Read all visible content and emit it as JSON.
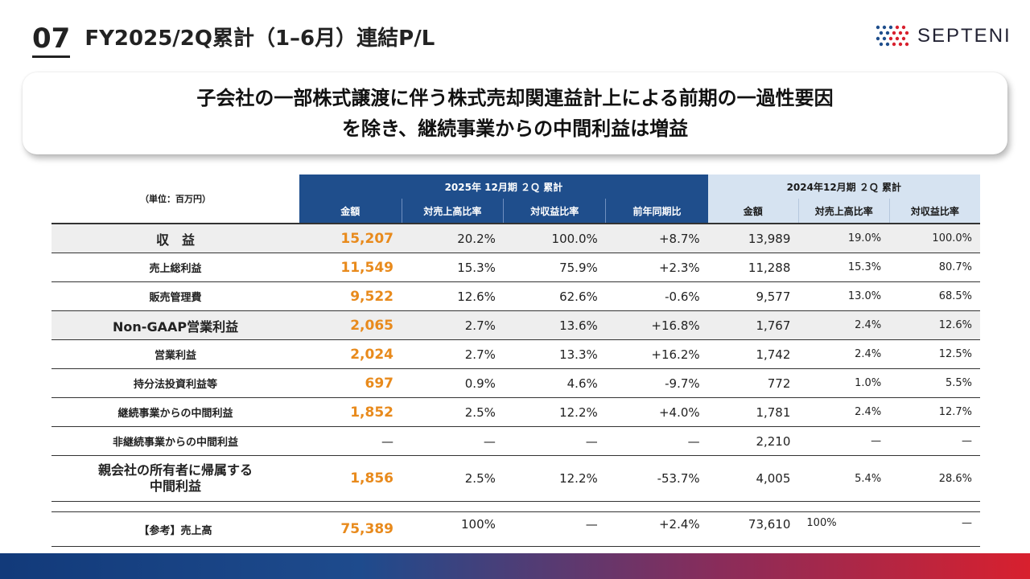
{
  "header": {
    "slide_number": "07",
    "title": "FY2025/2Q累計（1–6月）連結P/L"
  },
  "logo": {
    "text": "SEPTENI",
    "colors": [
      "#1f4e8c",
      "#d8202e"
    ]
  },
  "callout": {
    "line1": "子会社の一部株式譲渡に伴う株式売却関連益計上による前期の一過性要因",
    "line2": "を除き、継続事業からの中間利益は増益"
  },
  "table": {
    "unit_label": "（単位：百万円）",
    "group_current": "2025年 12月期 ２Ｑ 累計",
    "group_previous": "2024年12月期 ２Ｑ 累計",
    "headers_current": [
      "金額",
      "対売上高比率",
      "対収益比率",
      "前年同期比"
    ],
    "headers_previous": [
      "金額",
      "対売上高比率",
      "対収益比率"
    ],
    "rows": [
      {
        "label": "収　益",
        "amount": "15,207",
        "sales_ratio": "20.2%",
        "revenue_ratio": "100.0%",
        "yoy": "+8.7%",
        "prev_amount": "13,989",
        "prev_sales_ratio": "19.0%",
        "prev_revenue_ratio": "100.0%"
      },
      {
        "label": "売上総利益",
        "amount": "11,549",
        "sales_ratio": "15.3%",
        "revenue_ratio": "75.9%",
        "yoy": "+2.3%",
        "prev_amount": "11,288",
        "prev_sales_ratio": "15.3%",
        "prev_revenue_ratio": "80.7%"
      },
      {
        "label": "販売管理費",
        "amount": "9,522",
        "sales_ratio": "12.6%",
        "revenue_ratio": "62.6%",
        "yoy": "-0.6%",
        "prev_amount": "9,577",
        "prev_sales_ratio": "13.0%",
        "prev_revenue_ratio": "68.5%"
      },
      {
        "label": "Non-GAAP営業利益",
        "amount": "2,065",
        "sales_ratio": "2.7%",
        "revenue_ratio": "13.6%",
        "yoy": "+16.8%",
        "prev_amount": "1,767",
        "prev_sales_ratio": "2.4%",
        "prev_revenue_ratio": "12.6%"
      },
      {
        "label": "営業利益",
        "amount": "2,024",
        "sales_ratio": "2.7%",
        "revenue_ratio": "13.3%",
        "yoy": "+16.2%",
        "prev_amount": "1,742",
        "prev_sales_ratio": "2.4%",
        "prev_revenue_ratio": "12.5%"
      },
      {
        "label": "持分法投資利益等",
        "amount": "697",
        "sales_ratio": "0.9%",
        "revenue_ratio": "4.6%",
        "yoy": "-9.7%",
        "prev_amount": "772",
        "prev_sales_ratio": "1.0%",
        "prev_revenue_ratio": "5.5%"
      },
      {
        "label": "継続事業からの中間利益",
        "amount": "1,852",
        "sales_ratio": "2.5%",
        "revenue_ratio": "12.2%",
        "yoy": "+4.0%",
        "prev_amount": "1,781",
        "prev_sales_ratio": "2.4%",
        "prev_revenue_ratio": "12.7%"
      },
      {
        "label": "非継続事業からの中間利益",
        "amount": "—",
        "sales_ratio": "—",
        "revenue_ratio": "—",
        "yoy": "—",
        "prev_amount": "2,210",
        "prev_sales_ratio": "—",
        "prev_revenue_ratio": "—"
      },
      {
        "label_line1": "親会社の所有者に帰属する",
        "label_line2": "中間利益",
        "amount": "1,856",
        "sales_ratio": "2.5%",
        "revenue_ratio": "12.2%",
        "yoy": "-53.7%",
        "prev_amount": "4,005",
        "prev_sales_ratio": "5.4%",
        "prev_revenue_ratio": "28.6%"
      }
    ],
    "reference_row": {
      "label": "【参考】売上高",
      "amount": "75,389",
      "sales_ratio": "100%",
      "revenue_ratio": "—",
      "yoy": "+2.4%",
      "prev_amount": "73,610",
      "prev_sales_ratio": "100%",
      "prev_revenue_ratio": "—"
    }
  },
  "colors": {
    "header_blue": "#1f4e8c",
    "header_light": "#d6e3f1",
    "amount_orange": "#e88a1c",
    "highlight_gray": "#eeeeee"
  }
}
